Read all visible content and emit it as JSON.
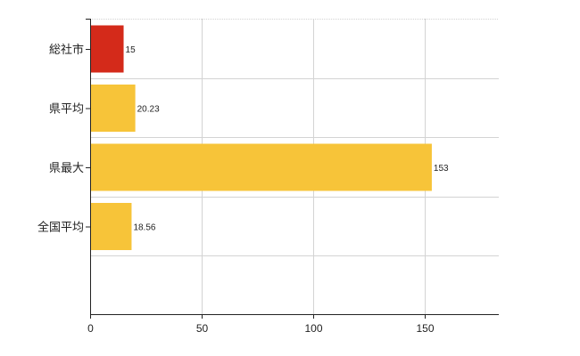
{
  "colors": {
    "highlight": "#d42a1a",
    "default": "#f7c439",
    "grid": "#d3d3d3",
    "axis": "#222222"
  },
  "chart_data": {
    "type": "bar",
    "orientation": "horizontal",
    "categories": [
      "総社市",
      "県平均",
      "県最大",
      "全国平均"
    ],
    "values": [
      15,
      20.23,
      153,
      18.56
    ],
    "data_labels": [
      "15",
      "20.23",
      "153",
      "18.56"
    ],
    "bar_colors": [
      "#d42a1a",
      "#f7c439",
      "#f7c439",
      "#f7c439"
    ],
    "xticks": [
      0,
      50,
      100,
      150
    ],
    "xtick_labels": [
      "0",
      "50",
      "100",
      "150"
    ],
    "xlim": [
      0,
      183
    ],
    "title": "",
    "xlabel": "",
    "ylabel": "",
    "grid": true,
    "legend": "none"
  }
}
